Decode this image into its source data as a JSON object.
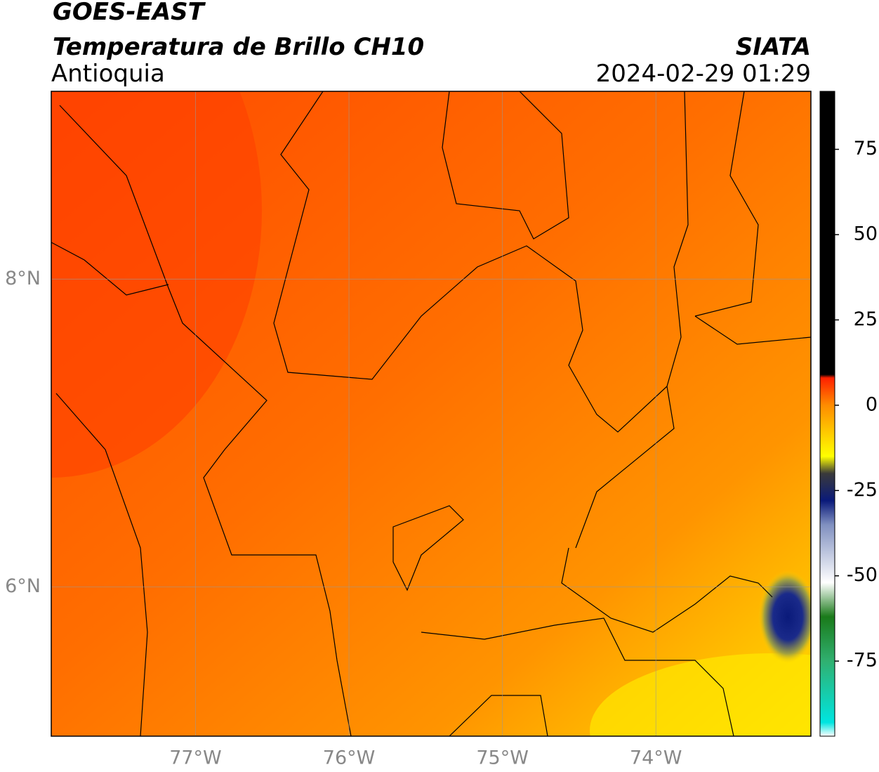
{
  "header": {
    "title": "GOES-EAST",
    "subtitle": "Temperatura de Brillo CH10",
    "region": "Antioquia",
    "source": "SIATA",
    "timestamp": "2024-02-29 01:29"
  },
  "map": {
    "xlim": [
      -77.94,
      -72.99
    ],
    "ylim": [
      5.03,
      9.22
    ],
    "xticks": [
      {
        "value": -77,
        "label": "77°W"
      },
      {
        "value": -76,
        "label": "76°W"
      },
      {
        "value": -75,
        "label": "75°W"
      },
      {
        "value": -74,
        "label": "74°W"
      }
    ],
    "yticks": [
      {
        "value": 8,
        "label": "8°N"
      },
      {
        "value": 6,
        "label": "6°N"
      }
    ],
    "grid": true
  },
  "colorbar": {
    "lim": [
      -97,
      92
    ],
    "ticks": [
      75,
      50,
      25,
      0,
      -25,
      -50,
      -75
    ],
    "stops": [
      {
        "value": -97,
        "color": "#ffffff"
      },
      {
        "value": -93,
        "color": "#00e5e0"
      },
      {
        "value": -75,
        "color": "#30b070"
      },
      {
        "value": -62,
        "color": "#1a7a1a"
      },
      {
        "value": -52,
        "color": "#ffffff"
      },
      {
        "value": -35,
        "color": "#8090c0"
      },
      {
        "value": -28,
        "color": "#0a1a7a"
      },
      {
        "value": -20,
        "color": "#3a3a3a"
      },
      {
        "value": -15,
        "color": "#ffff00"
      },
      {
        "value": 0,
        "color": "#ff8c00"
      },
      {
        "value": 8,
        "color": "#ff2000"
      },
      {
        "value": 9,
        "color": "#000000"
      },
      {
        "value": 92,
        "color": "#000000"
      }
    ]
  }
}
